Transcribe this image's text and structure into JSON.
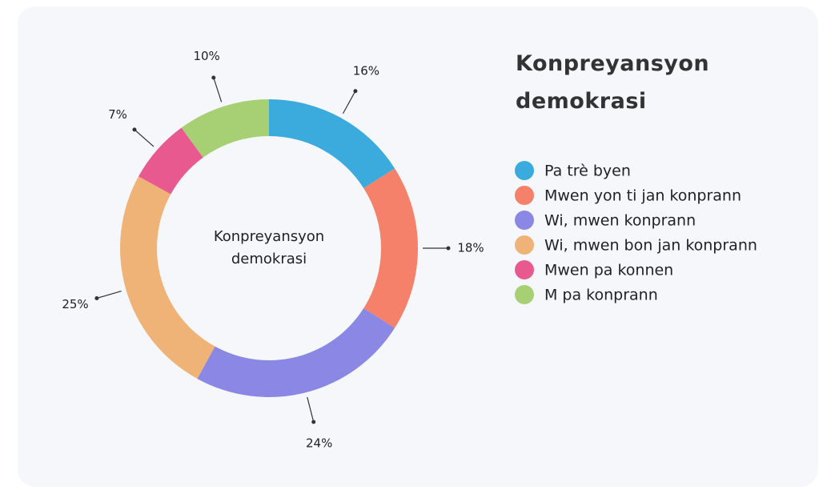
{
  "chart_data": {
    "type": "pie",
    "donut": true,
    "title": "Konpreyansyon demokrasi",
    "center_label": "Konpreyansyon demokrasi",
    "categories": [
      "Pa trè byen",
      "Mwen yon ti jan konprann",
      "Wi, mwen konprann",
      "Wi, mwen bon jan konprann",
      "Mwen pa konnen",
      "M pa konprann"
    ],
    "values": [
      16,
      18,
      24,
      25,
      7,
      10
    ],
    "value_labels": [
      "16%",
      "18%",
      "24%",
      "25%",
      "7%",
      "10%"
    ],
    "colors": [
      "#3babdd",
      "#f5816b",
      "#8a87e5",
      "#f0b377",
      "#e85a8f",
      "#a7d074"
    ]
  }
}
